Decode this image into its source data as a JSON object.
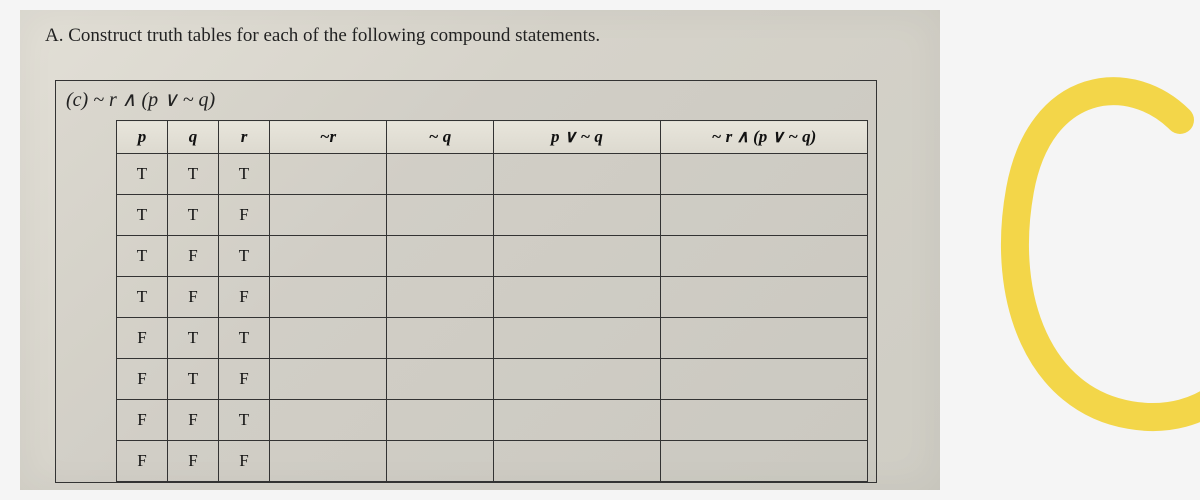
{
  "instruction": "A.  Construct truth tables for each of the following compound statements.",
  "problem_label": "(c)  ~ r ∧ (p ∨  ~ q)",
  "table": {
    "headers": [
      "p",
      "q",
      "r",
      "~r",
      "~ q",
      "p ∨  ~ q",
      "~ r ∧ (p ∨  ~ q)"
    ],
    "col_classes": [
      "col-small",
      "col-small",
      "col-small",
      "col-med",
      "col-medw",
      "col-wide",
      "col-xwide"
    ],
    "rows": [
      [
        "T",
        "T",
        "T",
        "",
        "",
        "",
        ""
      ],
      [
        "T",
        "T",
        "F",
        "",
        "",
        "",
        ""
      ],
      [
        "T",
        "F",
        "T",
        "",
        "",
        "",
        ""
      ],
      [
        "T",
        "F",
        "F",
        "",
        "",
        "",
        ""
      ],
      [
        "F",
        "T",
        "T",
        "",
        "",
        "",
        ""
      ],
      [
        "F",
        "T",
        "F",
        "",
        "",
        "",
        ""
      ],
      [
        "F",
        "F",
        "T",
        "",
        "",
        "",
        ""
      ],
      [
        "F",
        "F",
        "F",
        "",
        "",
        "",
        ""
      ]
    ]
  },
  "highlighter": {
    "stroke": "#f2d23a",
    "stroke_width": 28,
    "grade_letter": "C"
  },
  "colors": {
    "paper_bg": "#d8d5cd",
    "border": "#333333",
    "text": "#222222"
  }
}
